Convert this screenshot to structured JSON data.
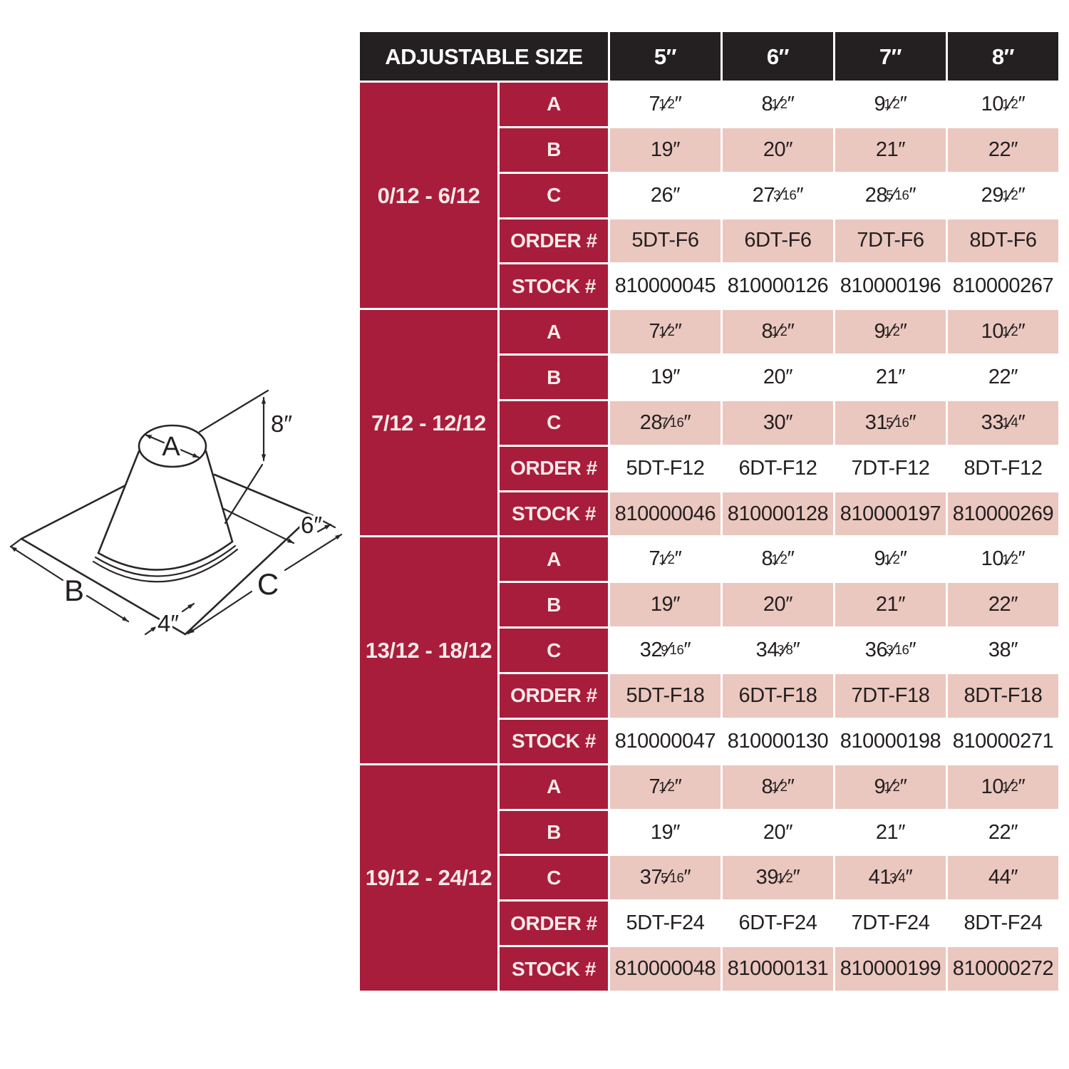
{
  "colors": {
    "brand_red": "#a81d3b",
    "row_pink": "#eac7bf",
    "header_black": "#241f20",
    "text_dark": "#231f20"
  },
  "diagram": {
    "labels": {
      "a": "A",
      "b": "B",
      "c": "C",
      "height": "8″",
      "top_margin": "6″",
      "bottom_margin": "4″"
    }
  },
  "table": {
    "header": {
      "title": "ADJUSTABLE SIZE",
      "sizes": [
        "5″",
        "6″",
        "7″",
        "8″"
      ]
    },
    "row_labels": [
      "A",
      "B",
      "C",
      "ORDER #",
      "STOCK #"
    ],
    "groups": [
      {
        "pitch": "0/12 - 6/12",
        "rows": [
          [
            "7 1/2″",
            "8 1/2″",
            "9 1/2″",
            "10 1/2″"
          ],
          [
            "19″",
            "20″",
            "21″",
            "22″"
          ],
          [
            "26″",
            "27 3/16″",
            "28 5/16″",
            "29 1/2″"
          ],
          [
            "5DT-F6",
            "6DT-F6",
            "7DT-F6",
            "8DT-F6"
          ],
          [
            "810000045",
            "810000126",
            "810000196",
            "810000267"
          ]
        ]
      },
      {
        "pitch": "7/12 - 12/12",
        "rows": [
          [
            "7 1/2″",
            "8 1/2″",
            "9 1/2″",
            "10 1/2″"
          ],
          [
            "19″",
            "20″",
            "21″",
            "22″"
          ],
          [
            "28 7/16″",
            "30″",
            "31 5/16″",
            "33 1/4″"
          ],
          [
            "5DT-F12",
            "6DT-F12",
            "7DT-F12",
            "8DT-F12"
          ],
          [
            "810000046",
            "810000128",
            "810000197",
            "810000269"
          ]
        ]
      },
      {
        "pitch": "13/12 - 18/12",
        "rows": [
          [
            "7 1/2″",
            "8 1/2″",
            "9 1/2″",
            "10 1/2″"
          ],
          [
            "19″",
            "20″",
            "21″",
            "22″"
          ],
          [
            "32 9/16″",
            "34 3/8″",
            "36 3/16″",
            "38″"
          ],
          [
            "5DT-F18",
            "6DT-F18",
            "7DT-F18",
            "8DT-F18"
          ],
          [
            "810000047",
            "810000130",
            "810000198",
            "810000271"
          ]
        ]
      },
      {
        "pitch": "19/12 - 24/12",
        "rows": [
          [
            "7 1/2″",
            "8 1/2″",
            "9 1/2″",
            "10 1/2″"
          ],
          [
            "19″",
            "20″",
            "21″",
            "22″"
          ],
          [
            "37 5/16″",
            "39 1/2″",
            "41 3/4″",
            "44″"
          ],
          [
            "5DT-F24",
            "6DT-F24",
            "7DT-F24",
            "8DT-F24"
          ],
          [
            "810000048",
            "810000131",
            "810000199",
            "810000272"
          ]
        ]
      }
    ]
  }
}
